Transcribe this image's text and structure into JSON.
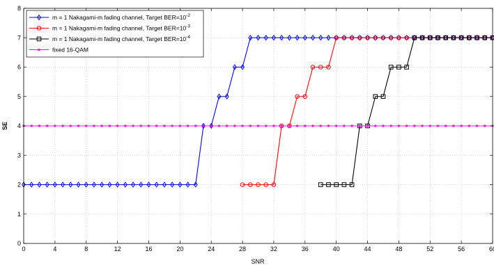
{
  "chart_data": {
    "type": "line",
    "xlabel": "SNR",
    "ylabel": "SE",
    "xlim": [
      0,
      60
    ],
    "ylim": [
      0,
      8
    ],
    "xticks": [
      0,
      4,
      8,
      12,
      16,
      20,
      24,
      28,
      32,
      36,
      40,
      44,
      48,
      52,
      56,
      60
    ],
    "yticks": [
      0,
      1,
      2,
      3,
      4,
      5,
      6,
      7,
      8
    ],
    "grid": true,
    "legend_position": "top-left",
    "series": [
      {
        "name": "m = 1 Nakagami-m fading channel, Target BER=10",
        "name_sup": "-2",
        "color": "#0000ff",
        "marker": "diamond",
        "x": [
          0,
          1,
          2,
          3,
          4,
          5,
          6,
          7,
          8,
          9,
          10,
          11,
          12,
          13,
          14,
          15,
          16,
          17,
          18,
          19,
          20,
          21,
          22,
          23,
          24,
          25,
          26,
          27,
          28,
          29,
          30,
          31,
          32,
          33,
          34,
          35,
          36,
          37,
          38,
          39,
          40,
          41,
          42,
          43,
          44,
          45,
          46,
          47,
          48,
          49,
          50,
          51,
          52,
          53,
          54,
          55,
          56,
          57,
          58,
          59,
          60
        ],
        "y": [
          2,
          2,
          2,
          2,
          2,
          2,
          2,
          2,
          2,
          2,
          2,
          2,
          2,
          2,
          2,
          2,
          2,
          2,
          2,
          2,
          2,
          2,
          2,
          4,
          4,
          5,
          5,
          6,
          6,
          7,
          7,
          7,
          7,
          7,
          7,
          7,
          7,
          7,
          7,
          7,
          7,
          7,
          7,
          7,
          7,
          7,
          7,
          7,
          7,
          7,
          7,
          7,
          7,
          7,
          7,
          7,
          7,
          7,
          7,
          7,
          7
        ]
      },
      {
        "name": "m = 1 Nakagami-m fading channel, Target BER=10",
        "name_sup": "-3",
        "color": "#ff0000",
        "marker": "circle",
        "x": [
          28,
          29,
          30,
          31,
          32,
          33,
          34,
          35,
          36,
          37,
          38,
          39,
          40,
          41,
          42,
          43,
          44,
          45,
          46,
          47,
          48,
          49,
          50,
          51,
          52,
          53,
          54,
          55,
          56,
          57,
          58,
          59,
          60
        ],
        "y": [
          2,
          2,
          2,
          2,
          2,
          4,
          4,
          5,
          5,
          6,
          6,
          6,
          7,
          7,
          7,
          7,
          7,
          7,
          7,
          7,
          7,
          7,
          7,
          7,
          7,
          7,
          7,
          7,
          7,
          7,
          7,
          7,
          7
        ]
      },
      {
        "name": "m = 1 Nakagami-m fading channel, Target BER=10",
        "name_sup": "-4",
        "color": "#000000",
        "marker": "square",
        "x": [
          38,
          39,
          40,
          41,
          42,
          43,
          44,
          45,
          46,
          47,
          48,
          49,
          50,
          51,
          52,
          53,
          54,
          55,
          56,
          57,
          58,
          59,
          60
        ],
        "y": [
          2,
          2,
          2,
          2,
          2,
          4,
          4,
          5,
          5,
          6,
          6,
          6,
          7,
          7,
          7,
          7,
          7,
          7,
          7,
          7,
          7,
          7,
          7
        ]
      },
      {
        "name": "fixed 16-QAM",
        "name_sup": "",
        "color": "#ff00ff",
        "marker": "dot",
        "x": [
          0,
          1,
          2,
          3,
          4,
          5,
          6,
          7,
          8,
          9,
          10,
          11,
          12,
          13,
          14,
          15,
          16,
          17,
          18,
          19,
          20,
          21,
          22,
          23,
          24,
          25,
          26,
          27,
          28,
          29,
          30,
          31,
          32,
          33,
          34,
          35,
          36,
          37,
          38,
          39,
          40,
          41,
          42,
          43,
          44,
          45,
          46,
          47,
          48,
          49,
          50,
          51,
          52,
          53,
          54,
          55,
          56,
          57,
          58,
          59,
          60
        ],
        "y": [
          4,
          4,
          4,
          4,
          4,
          4,
          4,
          4,
          4,
          4,
          4,
          4,
          4,
          4,
          4,
          4,
          4,
          4,
          4,
          4,
          4,
          4,
          4,
          4,
          4,
          4,
          4,
          4,
          4,
          4,
          4,
          4,
          4,
          4,
          4,
          4,
          4,
          4,
          4,
          4,
          4,
          4,
          4,
          4,
          4,
          4,
          4,
          4,
          4,
          4,
          4,
          4,
          4,
          4,
          4,
          4,
          4,
          4,
          4,
          4,
          4
        ]
      }
    ]
  }
}
